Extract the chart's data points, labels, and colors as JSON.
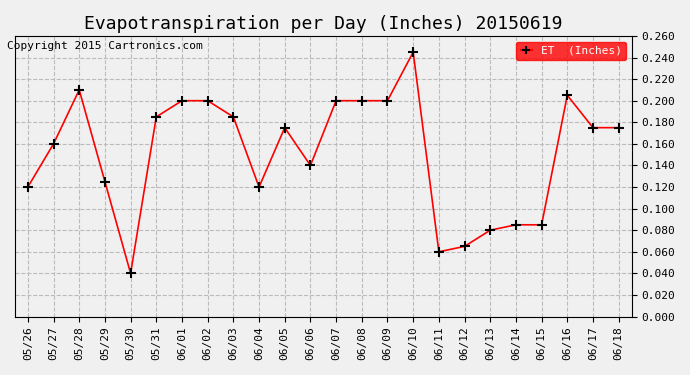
{
  "title": "Evapotranspiration per Day (Inches) 20150619",
  "copyright": "Copyright 2015 Cartronics.com",
  "legend_label": "ET  (Inches)",
  "dates": [
    "05/26",
    "05/27",
    "05/28",
    "05/29",
    "05/30",
    "05/31",
    "06/01",
    "06/02",
    "06/03",
    "06/04",
    "06/05",
    "06/06",
    "06/07",
    "06/08",
    "06/09",
    "06/10",
    "06/11",
    "06/12",
    "06/13",
    "06/14",
    "06/15",
    "06/16",
    "06/17",
    "06/18"
  ],
  "values": [
    0.12,
    0.16,
    0.21,
    0.125,
    0.04,
    0.185,
    0.2,
    0.2,
    0.185,
    0.12,
    0.175,
    0.14,
    0.2,
    0.2,
    0.2,
    0.245,
    0.06,
    0.065,
    0.08,
    0.085,
    0.085,
    0.205,
    0.175,
    0.175
  ],
  "line_color": "red",
  "marker": "P",
  "marker_size": 4,
  "ylim": [
    0.0,
    0.26
  ],
  "ytick_step": 0.02,
  "grid_color": "#bbbbbb",
  "grid_style": "--",
  "bg_color": "#f0f0f0",
  "legend_bg": "red",
  "legend_text_color": "white",
  "title_fontsize": 13,
  "copyright_fontsize": 8,
  "tick_fontsize": 8
}
